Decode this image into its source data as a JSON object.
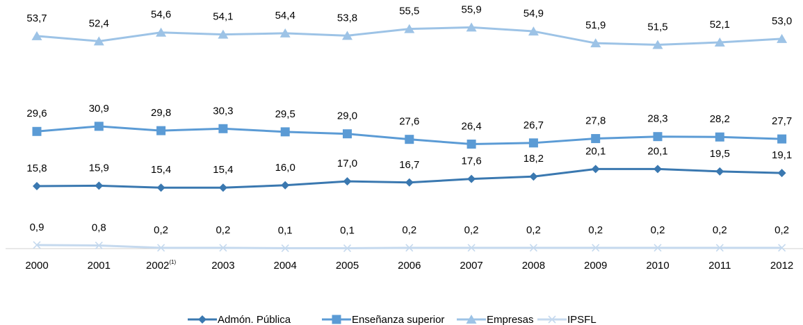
{
  "chart_data": {
    "type": "line",
    "categories": [
      "2000",
      "2001",
      "2002",
      "2003",
      "2004",
      "2005",
      "2006",
      "2007",
      "2008",
      "2009",
      "2010",
      "2011",
      "2012"
    ],
    "category_note": {
      "index": 2,
      "text": "(1)"
    },
    "ylim": [
      0,
      60
    ],
    "series": [
      {
        "name": "Admón. Pública",
        "color": "#3a78b0",
        "marker": "diamond",
        "values": [
          15.8,
          15.9,
          15.4,
          15.4,
          16.0,
          17.0,
          16.7,
          17.6,
          18.2,
          20.1,
          20.1,
          19.5,
          19.1
        ],
        "value_labels": [
          "15,8",
          "15,9",
          "15,4",
          "15,4",
          "16,0",
          "17,0",
          "16,7",
          "17,6",
          "18,2",
          "20,1",
          "20,1",
          "19,5",
          "19,1"
        ]
      },
      {
        "name": "Enseñanza superior",
        "color": "#5b9bd5",
        "marker": "square",
        "values": [
          29.6,
          30.9,
          29.8,
          30.3,
          29.5,
          29.0,
          27.6,
          26.4,
          26.7,
          27.8,
          28.3,
          28.2,
          27.7
        ],
        "value_labels": [
          "29,6",
          "30,9",
          "29,8",
          "30,3",
          "29,5",
          "29,0",
          "27,6",
          "26,4",
          "26,7",
          "27,8",
          "28,3",
          "28,2",
          "27,7"
        ]
      },
      {
        "name": "Empresas",
        "color": "#9dc3e6",
        "marker": "triangle",
        "values": [
          53.7,
          52.4,
          54.6,
          54.1,
          54.4,
          53.8,
          55.5,
          55.9,
          54.9,
          51.9,
          51.5,
          52.1,
          53.0
        ],
        "value_labels": [
          "53,7",
          "52,4",
          "54,6",
          "54,1",
          "54,4",
          "53,8",
          "55,5",
          "55,9",
          "54,9",
          "51,9",
          "51,5",
          "52,1",
          "53,0"
        ]
      },
      {
        "name": "IPSFL",
        "color": "#c5d9ee",
        "marker": "x",
        "values": [
          0.9,
          0.8,
          0.2,
          0.2,
          0.1,
          0.1,
          0.2,
          0.2,
          0.2,
          0.2,
          0.2,
          0.2,
          0.2
        ],
        "value_labels": [
          "0,9",
          "0,8",
          "0,2",
          "0,2",
          "0,1",
          "0,1",
          "0,2",
          "0,2",
          "0,2",
          "0,2",
          "0,2",
          "0,2",
          "0,2"
        ]
      }
    ]
  }
}
